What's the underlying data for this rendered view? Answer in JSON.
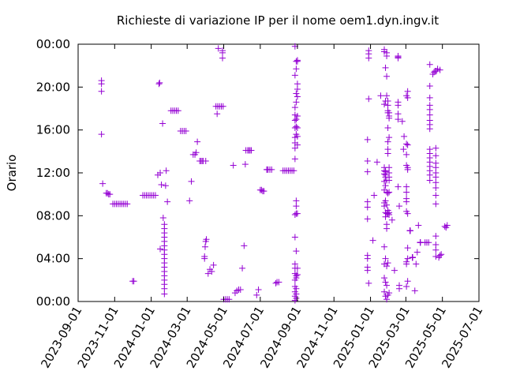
{
  "chart_data": {
    "type": "scatter",
    "title": "Richieste di variazione IP per il nome oem1.dyn.ingv.it",
    "xlabel": "",
    "ylabel": "Orario",
    "x_type": "date",
    "xlim": [
      "2023-09-01",
      "2025-07-01"
    ],
    "ylim": [
      0,
      24
    ],
    "x_ticks": [
      "2023-09-01",
      "2023-11-01",
      "2024-01-01",
      "2024-03-01",
      "2024-05-01",
      "2024-07-01",
      "2024-09-01",
      "2024-11-01",
      "2025-01-01",
      "2025-03-01",
      "2025-05-01",
      "2025-07-01"
    ],
    "y_ticks": [
      {
        "value": 0,
        "label": "00:00"
      },
      {
        "value": 4,
        "label": "04:00"
      },
      {
        "value": 8,
        "label": "08:00"
      },
      {
        "value": 12,
        "label": "12:00"
      },
      {
        "value": 16,
        "label": "16:00"
      },
      {
        "value": 20,
        "label": "20:00"
      },
      {
        "value": 24,
        "label": "00:00"
      }
    ],
    "grid": false,
    "marker": "+",
    "color": "#9400d3",
    "series": [
      {
        "x": [
          "2023-10-10",
          "2023-10-10",
          "2023-10-10",
          "2023-10-10",
          "2023-10-12",
          "2023-10-18",
          "2023-10-20",
          "2023-10-22",
          "2023-10-24",
          "2023-10-29",
          "2023-11-01",
          "2023-11-04",
          "2023-11-07",
          "2023-11-10",
          "2023-11-13",
          "2023-11-16",
          "2023-11-19",
          "2023-11-22",
          "2023-12-01",
          "2023-12-03",
          "2023-12-18",
          "2023-12-21",
          "2023-12-24",
          "2023-12-27",
          "2023-12-30",
          "2024-01-02",
          "2024-01-05",
          "2024-01-08",
          "2024-01-12",
          "2024-01-14",
          "2024-01-15",
          "2024-01-16",
          "2024-01-16",
          "2024-01-18",
          "2024-01-20",
          "2024-01-23",
          "2024-01-23",
          "2024-01-23",
          "2024-01-23",
          "2024-01-23",
          "2024-01-23",
          "2024-01-23",
          "2024-01-23",
          "2024-01-23",
          "2024-01-23",
          "2024-01-23",
          "2024-01-23",
          "2024-01-23",
          "2024-01-23",
          "2024-01-23",
          "2024-01-23",
          "2024-01-23",
          "2024-01-21",
          "2024-01-25",
          "2024-01-26",
          "2024-01-28",
          "2024-02-03",
          "2024-02-06",
          "2024-02-09",
          "2024-02-12",
          "2024-02-15",
          "2024-02-19",
          "2024-02-22",
          "2024-02-25",
          "2024-02-28",
          "2024-03-05",
          "2024-03-08",
          "2024-03-11",
          "2024-03-14",
          "2024-03-16",
          "2024-03-18",
          "2024-03-22",
          "2024-03-24",
          "2024-03-26",
          "2024-03-28",
          "2024-04-01",
          "2024-03-30",
          "2024-03-30",
          "2024-03-31",
          "2024-04-01",
          "2024-04-02",
          "2024-04-05",
          "2024-04-08",
          "2024-04-11",
          "2024-04-14",
          "2024-04-18",
          "2024-04-21",
          "2024-04-24",
          "2024-04-27",
          "2024-04-30",
          "2024-04-20",
          "2024-04-22",
          "2024-04-29",
          "2024-04-29",
          "2024-04-29",
          "2024-05-01",
          "2024-05-04",
          "2024-05-07",
          "2024-05-10",
          "2024-05-17",
          "2024-05-20",
          "2024-05-23",
          "2024-05-26",
          "2024-05-29",
          "2024-06-01",
          "2024-06-04",
          "2024-06-06",
          "2024-06-07",
          "2024-06-10",
          "2024-06-12",
          "2024-06-14",
          "2024-06-16",
          "2024-06-25",
          "2024-06-28",
          "2024-07-01",
          "2024-07-03",
          "2024-07-05",
          "2024-07-07",
          "2024-07-12",
          "2024-07-12",
          "2024-07-14",
          "2024-07-17",
          "2024-07-20",
          "2024-07-27",
          "2024-07-29",
          "2024-08-01",
          "2024-08-08",
          "2024-08-11",
          "2024-08-14",
          "2024-08-17",
          "2024-08-20",
          "2024-08-23",
          "2024-08-26",
          "2024-08-28",
          "2024-08-28",
          "2024-08-28",
          "2024-08-28",
          "2024-08-28",
          "2024-08-28",
          "2024-08-28",
          "2024-08-28",
          "2024-08-28",
          "2024-08-28",
          "2024-08-28",
          "2024-08-28",
          "2024-08-28",
          "2024-08-28",
          "2024-08-28",
          "2024-08-28",
          "2024-08-28",
          "2024-08-28",
          "2024-08-28",
          "2024-08-28",
          "2024-08-30",
          "2024-08-30",
          "2024-08-30",
          "2024-08-30",
          "2024-08-30",
          "2024-08-30",
          "2024-08-30",
          "2024-08-30",
          "2024-08-30",
          "2024-08-30",
          "2024-08-30",
          "2024-08-30",
          "2024-08-30",
          "2024-08-30",
          "2024-08-30",
          "2024-08-30",
          "2024-09-01",
          "2024-09-01",
          "2024-09-01",
          "2024-09-01",
          "2024-09-01",
          "2024-09-01",
          "2024-09-01",
          "2024-09-01",
          "2024-09-01",
          "2024-09-01",
          "2024-09-01",
          "2024-09-01",
          "2024-12-27",
          "2024-12-27",
          "2024-12-27",
          "2024-12-27",
          "2024-12-27",
          "2024-12-27",
          "2024-12-27",
          "2024-12-27",
          "2024-12-27",
          "2024-12-27",
          "2024-12-29",
          "2024-12-29",
          "2024-12-29",
          "2024-12-29",
          "2024-12-29",
          "2025-01-05",
          "2025-01-07",
          "2025-01-12",
          "2025-01-18",
          "2025-01-24",
          "2025-01-24",
          "2025-01-24",
          "2025-01-24",
          "2025-01-24",
          "2025-01-24",
          "2025-01-24",
          "2025-01-24",
          "2025-01-24",
          "2025-01-24",
          "2025-01-24",
          "2025-01-24",
          "2025-01-24",
          "2025-01-24",
          "2025-01-26",
          "2025-01-26",
          "2025-01-26",
          "2025-01-26",
          "2025-01-26",
          "2025-01-26",
          "2025-01-26",
          "2025-01-26",
          "2025-01-26",
          "2025-01-26",
          "2025-01-26",
          "2025-01-26",
          "2025-01-26",
          "2025-01-28",
          "2025-01-28",
          "2025-01-28",
          "2025-01-28",
          "2025-01-28",
          "2025-01-28",
          "2025-01-28",
          "2025-01-28",
          "2025-01-28",
          "2025-01-28",
          "2025-01-28",
          "2025-01-28",
          "2025-01-28",
          "2025-01-30",
          "2025-01-30",
          "2025-01-30",
          "2025-01-30",
          "2025-01-30",
          "2025-01-30",
          "2025-01-30",
          "2025-01-30",
          "2025-01-30",
          "2025-01-30",
          "2025-01-30",
          "2025-01-30",
          "2025-01-30",
          "2025-02-01",
          "2025-02-01",
          "2025-02-01",
          "2025-02-01",
          "2025-02-01",
          "2025-02-01",
          "2025-02-01",
          "2025-02-01",
          "2025-02-01",
          "2025-02-01",
          "2025-02-01",
          "2025-02-01",
          "2025-02-06",
          "2025-02-10",
          "2025-02-16",
          "2025-02-16",
          "2025-02-16",
          "2025-02-16",
          "2025-02-16",
          "2025-02-16",
          "2025-02-16",
          "2025-02-16",
          "2025-02-18",
          "2025-02-18",
          "2025-02-18",
          "2025-02-23",
          "2025-02-25",
          "2025-02-26",
          "2025-03-02",
          "2025-03-02",
          "2025-03-02",
          "2025-03-02",
          "2025-03-02",
          "2025-03-02",
          "2025-03-02",
          "2025-03-02",
          "2025-03-02",
          "2025-03-02",
          "2025-03-02",
          "2025-03-02",
          "2025-03-04",
          "2025-03-04",
          "2025-03-04",
          "2025-03-04",
          "2025-03-04",
          "2025-03-04",
          "2025-03-04",
          "2025-03-04",
          "2025-03-04",
          "2025-03-08",
          "2025-03-08",
          "2025-03-08",
          "2025-03-08",
          "2025-03-08",
          "2025-03-08",
          "2025-03-08",
          "2025-03-12",
          "2025-03-12",
          "2025-03-12",
          "2025-03-12",
          "2025-03-12",
          "2025-03-12",
          "2025-03-12",
          "2025-03-16",
          "2025-03-18",
          "2025-03-20",
          "2025-03-22",
          "2025-03-25",
          "2025-03-25",
          "2025-03-25",
          "2025-03-25",
          "2025-03-25",
          "2025-03-25",
          "2025-04-02",
          "2025-04-05",
          "2025-04-08",
          "2025-04-10",
          "2025-04-10",
          "2025-04-10",
          "2025-04-10",
          "2025-04-10",
          "2025-04-10",
          "2025-04-10",
          "2025-04-10",
          "2025-04-10",
          "2025-04-10",
          "2025-04-10",
          "2025-04-10",
          "2025-04-10",
          "2025-04-10",
          "2025-04-10",
          "2025-04-10",
          "2025-04-10",
          "2025-04-15",
          "2025-04-17",
          "2025-04-19",
          "2025-04-21",
          "2025-04-23",
          "2025-04-27",
          "2025-04-20",
          "2025-04-20",
          "2025-04-20",
          "2025-04-20",
          "2025-04-20",
          "2025-04-20",
          "2025-04-20",
          "2025-04-20",
          "2025-04-20",
          "2025-04-20",
          "2025-04-20",
          "2025-04-20",
          "2025-04-20",
          "2025-04-20",
          "2025-04-25",
          "2025-04-27",
          "2025-04-29",
          "2025-05-05",
          "2025-05-07",
          "2025-05-09"
        ],
        "y": [
          15.6,
          19.6,
          20.3,
          20.6,
          11.0,
          10.1,
          10.1,
          10.0,
          10.0,
          9.1,
          9.1,
          9.1,
          9.1,
          9.1,
          9.1,
          9.1,
          9.1,
          9.1,
          1.9,
          1.9,
          9.9,
          9.9,
          9.9,
          9.9,
          9.9,
          9.9,
          9.9,
          9.9,
          11.8,
          20.3,
          20.4,
          12.0,
          4.9,
          10.9,
          16.6,
          0.7,
          1.2,
          1.6,
          2.0,
          2.4,
          2.8,
          3.2,
          3.6,
          4.0,
          4.4,
          4.8,
          5.2,
          5.6,
          6.0,
          6.4,
          6.8,
          7.2,
          7.8,
          10.8,
          12.2,
          9.3,
          17.8,
          17.8,
          17.8,
          17.8,
          17.8,
          15.9,
          15.9,
          15.9,
          15.9,
          9.4,
          11.2,
          13.7,
          13.7,
          13.9,
          14.9,
          13.1,
          13.1,
          13.1,
          13.1,
          13.1,
          4.0,
          4.2,
          5.1,
          5.6,
          5.8,
          2.6,
          3.0,
          2.8,
          3.4,
          18.2,
          18.2,
          18.2,
          18.2,
          18.2,
          17.5,
          23.6,
          23.4,
          23.2,
          22.7,
          0.2,
          0.2,
          0.2,
          0.2,
          12.7,
          0.8,
          1.0,
          1.1,
          1.1,
          3.1,
          5.2,
          12.8,
          14.1,
          14.1,
          14.1,
          14.1,
          14.1,
          0.6,
          1.1,
          10.4,
          10.4,
          10.3,
          10.3,
          12.3,
          12.3,
          12.3,
          12.3,
          12.3,
          1.7,
          1.8,
          1.8,
          12.2,
          12.2,
          12.2,
          12.2,
          12.2,
          12.2,
          12.2,
          0.1,
          0.5,
          0.9,
          1.4,
          2.0,
          2.6,
          3.1,
          3.5,
          6.0,
          8.1,
          13.3,
          14.3,
          14.8,
          15.3,
          16.2,
          16.9,
          17.4,
          18.1,
          21.1,
          23.8,
          0.3,
          0.7,
          1.2,
          2.2,
          2.4,
          4.7,
          8.2,
          8.9,
          9.4,
          15.6,
          16.3,
          17.0,
          18.6,
          19.4,
          21.7,
          22.4,
          2.5,
          3.1,
          8.2,
          14.6,
          15.4,
          16.2,
          17.3,
          19.1,
          19.8,
          20.3,
          22.4,
          22.5,
          2.9,
          3.2,
          4.0,
          4.3,
          7.7,
          8.8,
          9.3,
          12.1,
          13.1,
          15.1,
          1.7,
          18.9,
          22.7,
          23.1,
          23.4,
          5.7,
          9.9,
          13.0,
          19.2,
          0.9,
          2.2,
          3.5,
          5.1,
          8.9,
          9.2,
          10.4,
          11.2,
          11.9,
          12.2,
          12.5,
          18.4,
          23.3,
          23.5,
          0.5,
          1.8,
          4.0,
          7.9,
          8.3,
          9.4,
          10.8,
          11.6,
          11.8,
          12.1,
          12.2,
          18.7,
          21.8,
          0.2,
          1.5,
          3.3,
          6.8,
          7.2,
          8.2,
          9.0,
          10.2,
          11.3,
          19.2,
          21.0,
          22.9,
          23.2,
          0.6,
          3.6,
          8.2,
          8.5,
          10.1,
          13.8,
          14.2,
          14.9,
          16.2,
          17.6,
          17.8,
          18.3,
          18.7,
          0.8,
          8.1,
          8.3,
          10.2,
          11.3,
          11.6,
          12.0,
          12.5,
          15.3,
          17.1,
          17.3,
          17.6,
          7.6,
          2.9,
          17.0,
          17.5,
          18.3,
          18.6,
          22.7,
          22.8,
          22.9,
          10.7,
          1.2,
          1.5,
          8.9,
          16.8,
          14.2,
          15.4,
          1.4,
          3.5,
          3.7,
          8.4,
          9.3,
          9.6,
          10.2,
          10.7,
          12.7,
          13.7,
          14.7,
          19.2,
          1.9,
          4.0,
          5.0,
          8.2,
          12.3,
          12.5,
          14.6,
          19.0,
          19.6,
          6.6,
          6.6,
          6.6,
          6.6,
          6.6,
          6.6,
          6.6,
          4.1,
          4.1,
          4.1,
          4.1,
          4.1,
          4.1,
          4.1,
          1.0,
          3.5,
          4.6,
          7.1,
          5.5,
          5.5,
          5.5,
          5.5,
          5.5,
          5.5,
          5.5,
          5.5,
          5.5,
          11.3,
          11.8,
          12.2,
          12.6,
          13.0,
          13.4,
          13.8,
          14.2,
          16.1,
          16.5,
          16.9,
          17.4,
          17.9,
          18.3,
          19.0,
          20.1,
          22.1,
          21.2,
          21.4,
          21.5,
          21.5,
          21.7,
          21.6,
          4.2,
          4.8,
          5.3,
          6.1,
          9.1,
          9.9,
          10.6,
          11.1,
          11.6,
          12.0,
          12.5,
          12.9,
          13.6,
          14.3,
          4.1,
          4.3,
          4.4,
          7.0,
          6.9,
          7.1
        ]
      }
    ]
  }
}
